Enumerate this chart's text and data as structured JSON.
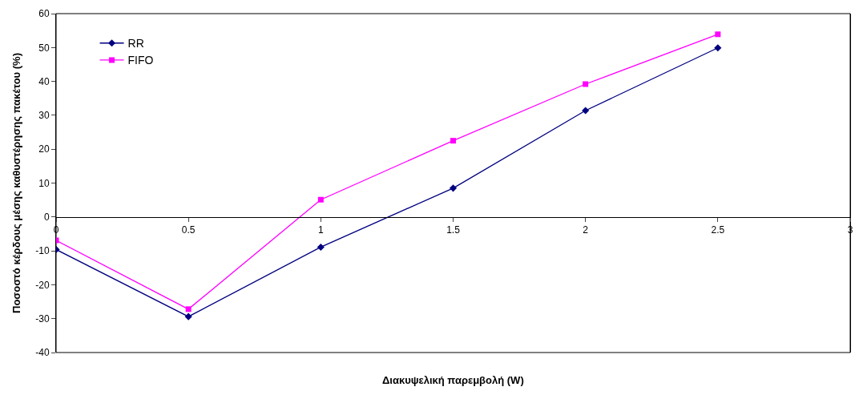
{
  "chart_data": {
    "type": "line",
    "xlabel": "Διακυψελική παρεμβολή (W)",
    "ylabel": "Ποσοστό κέρδους μέσης καθυστέρησης πακέτου (%)",
    "x": [
      0,
      0.5,
      1,
      1.5,
      2,
      2.5
    ],
    "series": [
      {
        "name": "RR",
        "color": "#000080",
        "marker": "diamond",
        "values": [
          -9.6,
          -29.4,
          -8.9,
          8.5,
          31.4,
          49.9
        ]
      },
      {
        "name": "FIFO",
        "color": "#ff00ff",
        "marker": "square",
        "values": [
          -6.9,
          -27.2,
          5.1,
          22.5,
          39.2,
          53.9
        ]
      }
    ],
    "xlim": [
      0,
      3
    ],
    "xticks": [
      0,
      0.5,
      1,
      1.5,
      2,
      2.5,
      3
    ],
    "ylim": [
      -40,
      60
    ],
    "yticks": [
      -40,
      -30,
      -20,
      -10,
      0,
      10,
      20,
      30,
      40,
      50,
      60
    ],
    "grid": false,
    "legend": "top left"
  }
}
